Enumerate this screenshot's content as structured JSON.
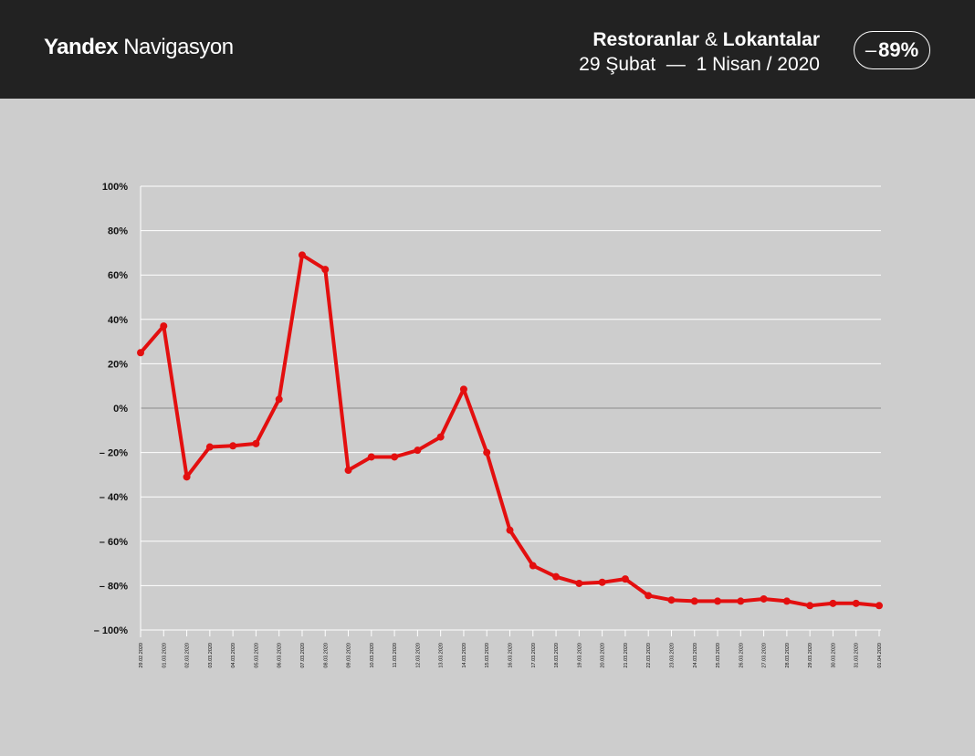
{
  "header": {
    "brand_bold": "Yandex",
    "brand_light": "Navigasyon",
    "title_part1": "Restoranlar",
    "title_amp": "&",
    "title_part2": "Lokantalar",
    "date_range": "29 Şubat  —  1 Nisan / 2020",
    "badge_minus": "–",
    "badge_value": "89%"
  },
  "colors": {
    "header_bg": "#222222",
    "background": "#cdcdcd",
    "line": "#e30f0f",
    "grid": "#ffffff",
    "zero_line": "#8a8a8a"
  },
  "chart_data": {
    "type": "line",
    "title": "",
    "xlabel": "",
    "ylabel": "",
    "ylim": [
      -100,
      100
    ],
    "grid": true,
    "yticks": [
      100,
      80,
      60,
      40,
      20,
      0,
      -20,
      -40,
      -60,
      -80,
      -100
    ],
    "ytick_labels": [
      "100%",
      "80%",
      "60%",
      "40%",
      "20%",
      "0%",
      "– 20%",
      "– 40%",
      "– 60%",
      "– 80%",
      "– 100%"
    ],
    "categories": [
      "29.02.2020",
      "01.03.2020",
      "02.03.2020",
      "03.03.2020",
      "04.03.2020",
      "05.03.2020",
      "06.03.2020",
      "07.03.2020",
      "08.03.2020",
      "09.03.2020",
      "10.03.2020",
      "11.03.2020",
      "12.03.2020",
      "13.03.2020",
      "14.03.2020",
      "15.03.2020",
      "16.03.2020",
      "17.03.2020",
      "18.03.2020",
      "19.03.2020",
      "20.03.2020",
      "21.03.2020",
      "22.03.2020",
      "23.03.2020",
      "24.03.2020",
      "25.03.2020",
      "26.03.2020",
      "27.03.2020",
      "28.03.2020",
      "29.03.2020",
      "30.03.2020",
      "31.03.2020",
      "01.04.2020"
    ],
    "series": [
      {
        "values": [
          25,
          37,
          -31,
          -17.5,
          -17,
          -16,
          4,
          69,
          62.5,
          -28,
          -22,
          -22,
          -19,
          -13,
          8.5,
          -20,
          -55,
          -71,
          -76,
          -79,
          -78.5,
          -77,
          -84.5,
          -86.5,
          -87,
          -87,
          -87,
          -86,
          -87,
          -89,
          -88,
          -88,
          -89
        ]
      }
    ]
  }
}
